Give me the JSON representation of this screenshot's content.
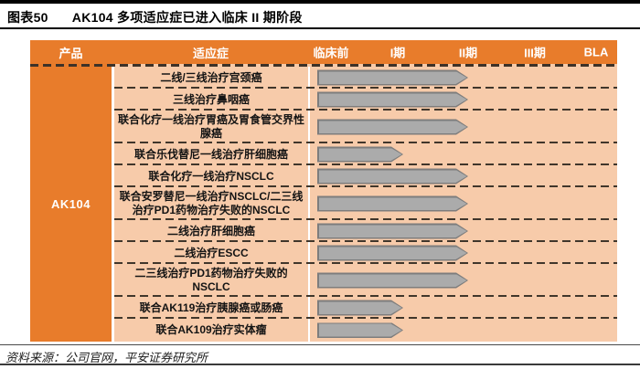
{
  "title": {
    "tag": "图表50",
    "text": "AK104 多项适应症已进入临床 II 期阶段"
  },
  "table": {
    "columns": {
      "product": "产品",
      "indication": "适应症",
      "phases": [
        "临床前",
        "I期",
        "II期",
        "III期",
        "BLA"
      ]
    },
    "product": "AK104",
    "rows": [
      {
        "indication": "二线/三线治疗宫颈癌",
        "phase": "II期",
        "arrow_width": 165
      },
      {
        "indication": "三线治疗鼻咽癌",
        "phase": "II期",
        "arrow_width": 165
      },
      {
        "indication": "联合化疗一线治疗胃癌及胃食管交界性腺癌",
        "phase": "II期",
        "arrow_width": 165
      },
      {
        "indication": "联合乐伐替尼一线治疗肝细胞癌",
        "phase": "I期",
        "arrow_width": 94
      },
      {
        "indication": "联合化疗一线治疗NSCLC",
        "phase": "II期",
        "arrow_width": 165
      },
      {
        "indication": "联合安罗替尼一线治疗NSCLC/二三线治疗PD1药物治疗失败的NSCLC",
        "phase": "II期",
        "arrow_width": 165
      },
      {
        "indication": "二线治疗肝细胞癌",
        "phase": "II期",
        "arrow_width": 165
      },
      {
        "indication": "二线治疗ESCC",
        "phase": "II期",
        "arrow_width": 165
      },
      {
        "indication": "二三线治疗PD1药物治疗失败的NSCLC",
        "phase": "II期",
        "arrow_width": 165
      },
      {
        "indication": "联合AK119治疗胰腺癌或肠癌",
        "phase": "I期",
        "arrow_width": 94
      },
      {
        "indication": "联合AK109治疗实体瘤",
        "phase": "I期",
        "arrow_width": 94
      }
    ]
  },
  "footer": {
    "source": "资料来源：公司官网，平安证券研究所"
  },
  "colors": {
    "header_orange": "#E87C2B",
    "row_peach": "#F7CBAA",
    "arrow_fill": "#ABABAB",
    "arrow_border": "#7D7D7D",
    "dash": "#40362B"
  },
  "chart_data": {
    "type": "bar",
    "orientation": "horizontal",
    "title": "AK104 多项适应症已进入临床 II 期阶段",
    "x_axis_stages": [
      "临床前",
      "I期",
      "II期",
      "III期",
      "BLA"
    ],
    "categories": [
      "二线/三线治疗宫颈癌",
      "三线治疗鼻咽癌",
      "联合化疗一线治疗胃癌及胃食管交界性腺癌",
      "联合乐伐替尼一线治疗肝细胞癌",
      "联合化疗一线治疗NSCLC",
      "联合安罗替尼一线治疗NSCLC/二三线治疗PD1药物治疗失败的NSCLC",
      "二线治疗肝细胞癌",
      "二线治疗ESCC",
      "二三线治疗PD1药物治疗失败的NSCLC",
      "联合AK119治疗胰腺癌或肠癌",
      "联合AK109治疗实体瘤"
    ],
    "values": [
      "II期",
      "II期",
      "II期",
      "I期",
      "II期",
      "II期",
      "II期",
      "II期",
      "II期",
      "I期",
      "I期"
    ],
    "legend": false,
    "grid": false
  }
}
